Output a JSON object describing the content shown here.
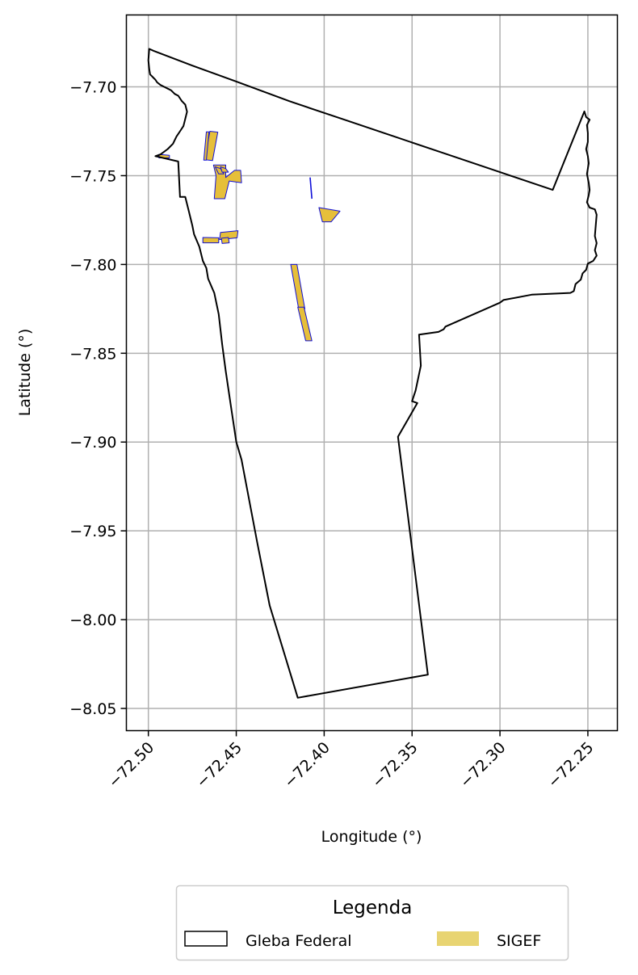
{
  "chart_data": {
    "type": "map",
    "xlabel": "Longitude (°)",
    "ylabel": "Latitude (°)",
    "xlim": [
      -72.5125,
      -72.2332
    ],
    "ylim": [
      -8.0625,
      -7.6595
    ],
    "x_ticks": [
      -72.5,
      -72.45,
      -72.4,
      -72.35,
      -72.3,
      -72.25
    ],
    "x_tick_labels": [
      "−72.50",
      "−72.45",
      "−72.40",
      "−72.35",
      "−72.30",
      "−72.25"
    ],
    "y_ticks": [
      -7.7,
      -7.75,
      -7.8,
      -7.85,
      -7.9,
      -7.95,
      -8.0,
      -8.05
    ],
    "y_tick_labels": [
      "−7.70",
      "−7.75",
      "−7.80",
      "−7.85",
      "−7.90",
      "−7.95",
      "−8.00",
      "−8.05"
    ],
    "grid": true,
    "legend": {
      "title": "Legenda",
      "placement": "bottom-center",
      "items": [
        {
          "label": "Gleba Federal",
          "kind": "outline"
        },
        {
          "label": "SIGEF",
          "kind": "fill"
        }
      ]
    },
    "colors": {
      "gleba_edge": "#000000",
      "sigef_fill": "#e6bf3a",
      "sigef_legend": "#e8d472",
      "sigef_edge": "#1010d8",
      "grid": "#b0b0b0"
    },
    "gleba_federal": [
      [
        -72.4995,
        -7.6786
      ],
      [
        -72.497,
        -7.6797
      ],
      [
        -72.475,
        -7.688
      ],
      [
        -72.45,
        -7.697
      ],
      [
        -72.42,
        -7.708
      ],
      [
        -72.39,
        -7.718
      ],
      [
        -72.36,
        -7.728
      ],
      [
        -72.33,
        -7.738
      ],
      [
        -72.3,
        -7.748
      ],
      [
        -72.27,
        -7.758
      ],
      [
        -72.252,
        -7.7138
      ],
      [
        -72.251,
        -7.717
      ],
      [
        -72.249,
        -7.7185
      ],
      [
        -72.2505,
        -7.7215
      ],
      [
        -72.25,
        -7.726
      ],
      [
        -72.25,
        -7.731
      ],
      [
        -72.251,
        -7.735
      ],
      [
        -72.25,
        -7.739
      ],
      [
        -72.2495,
        -7.743
      ],
      [
        -72.2505,
        -7.749
      ],
      [
        -72.2495,
        -7.754
      ],
      [
        -72.249,
        -7.758
      ],
      [
        -72.2495,
        -7.761
      ],
      [
        -72.2505,
        -7.765
      ],
      [
        -72.249,
        -7.768
      ],
      [
        -72.246,
        -7.769
      ],
      [
        -72.245,
        -7.772
      ],
      [
        -72.2455,
        -7.778
      ],
      [
        -72.246,
        -7.784
      ],
      [
        -72.245,
        -7.788
      ],
      [
        -72.246,
        -7.792
      ],
      [
        -72.245,
        -7.795
      ],
      [
        -72.247,
        -7.798
      ],
      [
        -72.25,
        -7.7995
      ],
      [
        -72.251,
        -7.803
      ],
      [
        -72.253,
        -7.805
      ],
      [
        -72.254,
        -7.8085
      ],
      [
        -72.257,
        -7.811
      ],
      [
        -72.258,
        -7.815
      ],
      [
        -72.26,
        -7.816
      ],
      [
        -72.282,
        -7.817
      ],
      [
        -72.298,
        -7.82
      ],
      [
        -72.3,
        -7.8215
      ],
      [
        -72.331,
        -7.835
      ],
      [
        -72.332,
        -7.8365
      ],
      [
        -72.335,
        -7.838
      ],
      [
        -72.346,
        -7.8395
      ],
      [
        -72.345,
        -7.857
      ],
      [
        -72.348,
        -7.871
      ],
      [
        -72.35,
        -7.877
      ],
      [
        -72.3485,
        -7.8775
      ],
      [
        -72.347,
        -7.878
      ],
      [
        -72.358,
        -7.897
      ],
      [
        -72.341,
        -8.031
      ],
      [
        -72.415,
        -8.044
      ],
      [
        -72.431,
        -7.992
      ],
      [
        -72.438,
        -7.957
      ],
      [
        -72.447,
        -7.91
      ],
      [
        -72.45,
        -7.9
      ],
      [
        -72.453,
        -7.88
      ],
      [
        -72.456,
        -7.86
      ],
      [
        -72.458,
        -7.845
      ],
      [
        -72.46,
        -7.828
      ],
      [
        -72.4625,
        -7.816
      ],
      [
        -72.466,
        -7.808
      ],
      [
        -72.467,
        -7.802
      ],
      [
        -72.469,
        -7.798
      ],
      [
        -72.471,
        -7.79
      ],
      [
        -72.474,
        -7.783
      ],
      [
        -72.475,
        -7.778
      ],
      [
        -72.477,
        -7.77
      ],
      [
        -72.479,
        -7.762
      ],
      [
        -72.482,
        -7.762
      ],
      [
        -72.483,
        -7.742
      ],
      [
        -72.496,
        -7.739
      ],
      [
        -72.493,
        -7.738
      ],
      [
        -72.489,
        -7.735
      ],
      [
        -72.486,
        -7.732
      ],
      [
        -72.484,
        -7.728
      ],
      [
        -72.482,
        -7.725
      ],
      [
        -72.48,
        -7.722
      ],
      [
        -72.479,
        -7.718
      ],
      [
        -72.478,
        -7.714
      ],
      [
        -72.479,
        -7.71
      ],
      [
        -72.481,
        -7.708
      ],
      [
        -72.483,
        -7.705
      ],
      [
        -72.485,
        -7.704
      ],
      [
        -72.487,
        -7.702
      ],
      [
        -72.489,
        -7.701
      ],
      [
        -72.491,
        -7.7
      ],
      [
        -72.493,
        -7.699
      ],
      [
        -72.495,
        -7.6975
      ],
      [
        -72.496,
        -7.696
      ],
      [
        -72.497,
        -7.695
      ],
      [
        -72.498,
        -7.694
      ],
      [
        -72.499,
        -7.693
      ],
      [
        -72.4995,
        -7.69
      ],
      [
        -72.5,
        -7.685
      ],
      [
        -72.4995,
        -7.6786
      ]
    ],
    "sigef_parcels": [
      [
        [
          -72.465,
          -7.725
        ],
        [
          -72.4605,
          -7.7255
        ],
        [
          -72.4635,
          -7.7415
        ],
        [
          -72.468,
          -7.741
        ]
      ],
      [
        [
          -72.467,
          -7.7253
        ],
        [
          -72.4655,
          -7.7253
        ],
        [
          -72.467,
          -7.7413
        ],
        [
          -72.4685,
          -7.7413
        ]
      ],
      [
        [
          -72.463,
          -7.744
        ],
        [
          -72.456,
          -7.744
        ],
        [
          -72.456,
          -7.751
        ],
        [
          -72.451,
          -7.747
        ],
        [
          -72.4475,
          -7.747
        ],
        [
          -72.447,
          -7.754
        ],
        [
          -72.454,
          -7.753
        ],
        [
          -72.4565,
          -7.763
        ],
        [
          -72.4625,
          -7.763
        ],
        [
          -72.4615,
          -7.75
        ],
        [
          -72.463,
          -7.744
        ]
      ],
      [
        [
          -72.462,
          -7.745
        ],
        [
          -72.459,
          -7.746
        ],
        [
          -72.457,
          -7.749
        ],
        [
          -72.46,
          -7.749
        ]
      ],
      [
        [
          -72.459,
          -7.745
        ],
        [
          -72.456,
          -7.746
        ],
        [
          -72.4545,
          -7.748
        ],
        [
          -72.458,
          -7.748
        ]
      ],
      [
        [
          -72.494,
          -7.738
        ],
        [
          -72.488,
          -7.7385
        ],
        [
          -72.488,
          -7.74
        ],
        [
          -72.494,
          -7.74
        ]
      ],
      [
        [
          -72.459,
          -7.782
        ],
        [
          -72.449,
          -7.781
        ],
        [
          -72.4495,
          -7.785
        ],
        [
          -72.4595,
          -7.786
        ]
      ],
      [
        [
          -72.4585,
          -7.7852
        ],
        [
          -72.4545,
          -7.7848
        ],
        [
          -72.454,
          -7.7878
        ],
        [
          -72.458,
          -7.7882
        ]
      ],
      [
        [
          -72.469,
          -7.7848
        ],
        [
          -72.46,
          -7.785
        ],
        [
          -72.46,
          -7.7878
        ],
        [
          -72.469,
          -7.7878
        ]
      ],
      [
        [
          -72.403,
          -7.768
        ],
        [
          -72.401,
          -7.776
        ],
        [
          -72.396,
          -7.776
        ],
        [
          -72.391,
          -7.77
        ]
      ],
      [
        [
          -72.419,
          -7.8
        ],
        [
          -72.4155,
          -7.8
        ],
        [
          -72.411,
          -7.825
        ],
        [
          -72.4145,
          -7.825
        ]
      ],
      [
        [
          -72.415,
          -7.824
        ],
        [
          -72.4115,
          -7.824
        ],
        [
          -72.407,
          -7.843
        ],
        [
          -72.4105,
          -7.843
        ]
      ]
    ],
    "sigef_lines": [
      [
        [
          -72.408,
          -7.751
        ],
        [
          -72.407,
          -7.763
        ]
      ]
    ]
  }
}
